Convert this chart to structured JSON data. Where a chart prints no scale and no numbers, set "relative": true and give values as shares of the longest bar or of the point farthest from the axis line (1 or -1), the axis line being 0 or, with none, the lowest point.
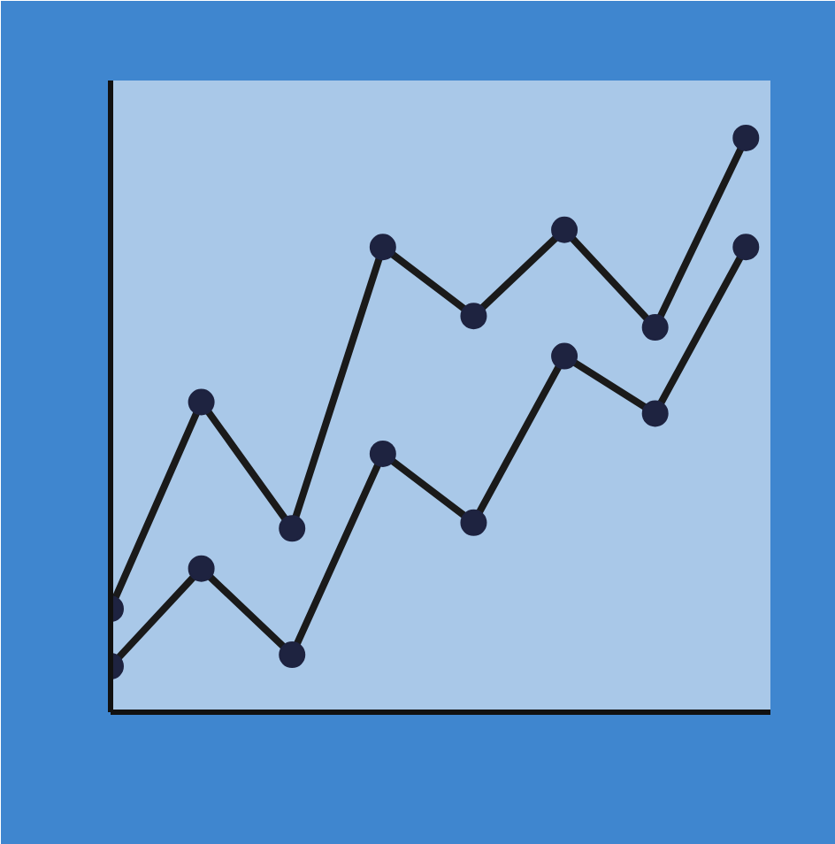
{
  "chart_data": {
    "type": "line",
    "relative": true,
    "marker": "circle",
    "categories": [
      null,
      null,
      null,
      null,
      null,
      null,
      null,
      null
    ],
    "series": [
      {
        "color": "#1a1a1a",
        "values": [
          0.18,
          0.54,
          0.32,
          0.81,
          0.69,
          0.84,
          0.67,
          1.0
        ]
      },
      {
        "color": "#1a1a1a",
        "values": [
          0.08,
          0.25,
          0.1,
          0.45,
          0.33,
          0.62,
          0.52,
          0.81
        ]
      }
    ]
  }
}
